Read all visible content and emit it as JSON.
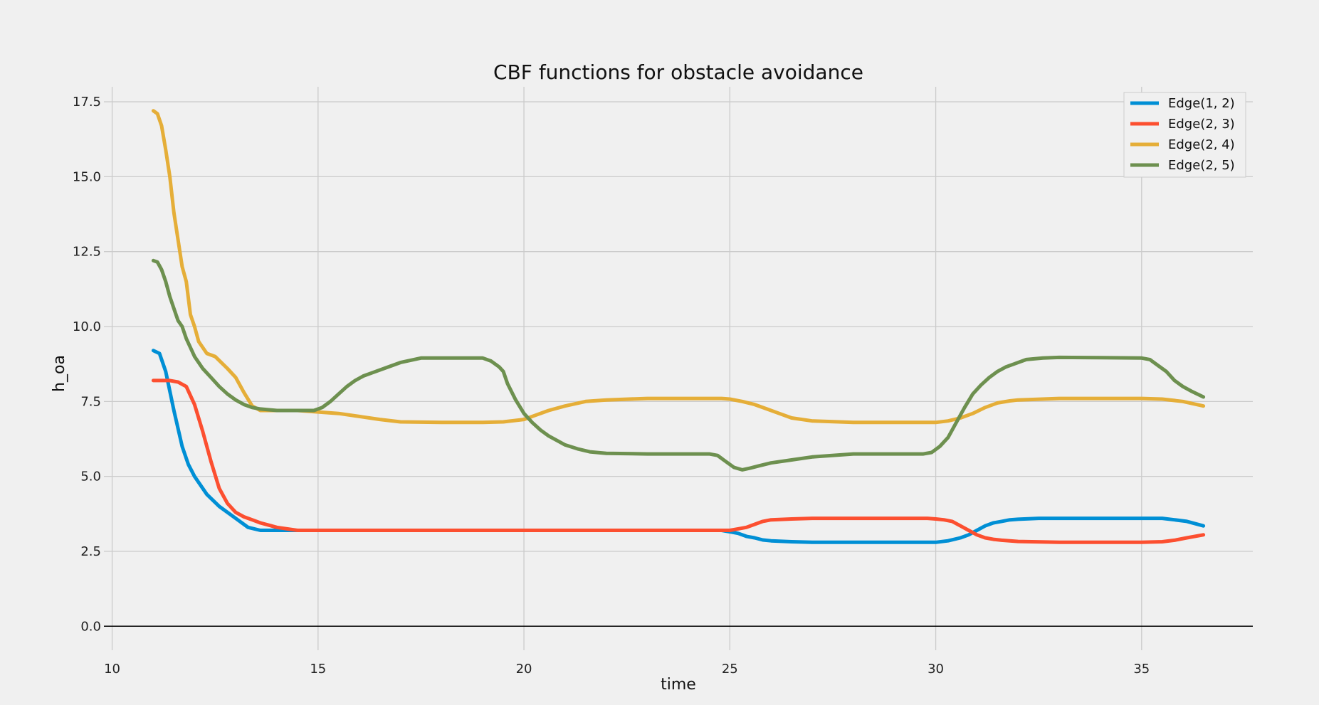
{
  "chart_data": {
    "type": "line",
    "title": "CBF functions for obstacle avoidance",
    "xlabel": "time",
    "ylabel": "h_oa",
    "xlim": [
      9.8,
      37.7
    ],
    "ylim": [
      -0.8,
      18.0
    ],
    "xticks": [
      10,
      15,
      20,
      25,
      30,
      35
    ],
    "yticks": [
      0.0,
      2.5,
      5.0,
      7.5,
      10.0,
      12.5,
      15.0,
      17.5
    ],
    "xtick_labels": [
      "10",
      "15",
      "20",
      "25",
      "30",
      "35"
    ],
    "ytick_labels": [
      "0.0",
      "2.5",
      "5.0",
      "7.5",
      "10.0",
      "12.5",
      "15.0",
      "17.5"
    ],
    "grid": true,
    "zero_line": true,
    "legend_position": "top-right",
    "series": [
      {
        "name": "Edge(1, 2)",
        "color": "#008fd5",
        "x": [
          11.0,
          11.15,
          11.3,
          11.5,
          11.7,
          11.85,
          12.0,
          12.3,
          12.6,
          13.0,
          13.3,
          13.6,
          14.0,
          15.0,
          16.0,
          18.0,
          20.0,
          22.0,
          24.0,
          24.8,
          25.0,
          25.2,
          25.4,
          25.6,
          25.8,
          26.0,
          26.5,
          27.0,
          28.0,
          29.0,
          30.0,
          30.3,
          30.6,
          30.8,
          31.0,
          31.2,
          31.4,
          31.6,
          31.8,
          32.0,
          32.5,
          33.0,
          34.0,
          35.0,
          35.5,
          35.8,
          36.1,
          36.5
        ],
        "y": [
          9.2,
          9.1,
          8.5,
          7.2,
          6.0,
          5.4,
          5.0,
          4.4,
          4.0,
          3.6,
          3.3,
          3.2,
          3.2,
          3.2,
          3.2,
          3.2,
          3.2,
          3.2,
          3.2,
          3.2,
          3.15,
          3.1,
          3.0,
          2.95,
          2.88,
          2.85,
          2.82,
          2.8,
          2.8,
          2.8,
          2.8,
          2.85,
          2.95,
          3.05,
          3.2,
          3.35,
          3.45,
          3.5,
          3.55,
          3.57,
          3.6,
          3.6,
          3.6,
          3.6,
          3.6,
          3.55,
          3.5,
          3.35
        ]
      },
      {
        "name": "Edge(2, 3)",
        "color": "#fc4f30",
        "x": [
          11.0,
          11.2,
          11.4,
          11.6,
          11.8,
          12.0,
          12.2,
          12.4,
          12.6,
          12.8,
          13.0,
          13.2,
          13.4,
          13.6,
          14.0,
          14.5,
          15.0,
          16.0,
          18.0,
          20.0,
          22.0,
          24.0,
          24.8,
          25.0,
          25.2,
          25.4,
          25.6,
          25.8,
          26.0,
          26.5,
          27.0,
          28.0,
          29.0,
          29.8,
          30.0,
          30.2,
          30.4,
          30.6,
          30.8,
          31.0,
          31.2,
          31.4,
          31.6,
          31.8,
          32.0,
          33.0,
          34.0,
          35.0,
          35.5,
          35.8,
          36.1,
          36.5
        ],
        "y": [
          8.2,
          8.2,
          8.2,
          8.15,
          8.0,
          7.4,
          6.5,
          5.5,
          4.6,
          4.1,
          3.8,
          3.65,
          3.55,
          3.45,
          3.3,
          3.2,
          3.2,
          3.2,
          3.2,
          3.2,
          3.2,
          3.2,
          3.2,
          3.2,
          3.25,
          3.3,
          3.4,
          3.5,
          3.55,
          3.58,
          3.6,
          3.6,
          3.6,
          3.6,
          3.58,
          3.55,
          3.5,
          3.35,
          3.2,
          3.05,
          2.95,
          2.9,
          2.87,
          2.85,
          2.83,
          2.8,
          2.8,
          2.8,
          2.82,
          2.87,
          2.95,
          3.05
        ]
      },
      {
        "name": "Edge(2, 4)",
        "color": "#e5ae38",
        "x": [
          11.0,
          11.1,
          11.2,
          11.3,
          11.4,
          11.5,
          11.6,
          11.7,
          11.8,
          11.9,
          12.0,
          12.1,
          12.3,
          12.5,
          12.8,
          13.0,
          13.2,
          13.4,
          13.6,
          14.0,
          14.5,
          15.0,
          15.5,
          16.0,
          16.5,
          17.0,
          18.0,
          19.0,
          19.5,
          20.0,
          20.3,
          20.6,
          21.0,
          21.5,
          22.0,
          23.0,
          24.0,
          24.5,
          24.8,
          25.0,
          25.3,
          25.6,
          25.9,
          26.2,
          26.5,
          27.0,
          28.0,
          29.0,
          30.0,
          30.3,
          30.6,
          30.9,
          31.2,
          31.5,
          31.8,
          32.0,
          33.0,
          34.0,
          35.0,
          35.5,
          36.0,
          36.5
        ],
        "y": [
          17.2,
          17.1,
          16.7,
          15.9,
          15.0,
          13.8,
          12.9,
          12.0,
          11.5,
          10.4,
          10.0,
          9.5,
          9.1,
          9.0,
          8.6,
          8.3,
          7.8,
          7.35,
          7.2,
          7.2,
          7.2,
          7.15,
          7.1,
          7.0,
          6.9,
          6.82,
          6.8,
          6.8,
          6.82,
          6.9,
          7.05,
          7.2,
          7.35,
          7.5,
          7.55,
          7.6,
          7.6,
          7.6,
          7.6,
          7.58,
          7.5,
          7.4,
          7.25,
          7.1,
          6.95,
          6.85,
          6.8,
          6.8,
          6.8,
          6.85,
          6.95,
          7.1,
          7.3,
          7.45,
          7.52,
          7.55,
          7.6,
          7.6,
          7.6,
          7.58,
          7.5,
          7.35
        ]
      },
      {
        "name": "Edge(2, 5)",
        "color": "#6d904f",
        "x": [
          11.0,
          11.1,
          11.2,
          11.3,
          11.4,
          11.5,
          11.6,
          11.7,
          11.8,
          11.9,
          12.0,
          12.2,
          12.4,
          12.6,
          12.8,
          13.0,
          13.2,
          13.4,
          13.6,
          14.0,
          14.5,
          14.9,
          15.1,
          15.3,
          15.5,
          15.7,
          15.9,
          16.1,
          16.3,
          16.6,
          17.0,
          17.5,
          18.0,
          18.5,
          19.0,
          19.2,
          19.4,
          19.5,
          19.6,
          19.8,
          20.0,
          20.2,
          20.4,
          20.6,
          20.8,
          21.0,
          21.3,
          21.6,
          22.0,
          23.0,
          24.0,
          24.5,
          24.7,
          24.9,
          25.1,
          25.3,
          25.5,
          25.7,
          26.0,
          26.5,
          27.0,
          28.0,
          29.0,
          29.7,
          29.9,
          30.1,
          30.3,
          30.5,
          30.7,
          30.9,
          31.1,
          31.3,
          31.5,
          31.7,
          31.9,
          32.2,
          32.6,
          33.0,
          34.0,
          35.0,
          35.2,
          35.4,
          35.6,
          35.8,
          36.0,
          36.2,
          36.5
        ],
        "y": [
          12.2,
          12.15,
          11.9,
          11.5,
          11.0,
          10.6,
          10.2,
          10.0,
          9.6,
          9.3,
          9.0,
          8.6,
          8.3,
          8.0,
          7.75,
          7.55,
          7.4,
          7.3,
          7.25,
          7.2,
          7.2,
          7.2,
          7.3,
          7.5,
          7.75,
          8.0,
          8.2,
          8.35,
          8.45,
          8.6,
          8.8,
          8.95,
          8.95,
          8.95,
          8.95,
          8.85,
          8.65,
          8.5,
          8.1,
          7.55,
          7.1,
          6.8,
          6.55,
          6.35,
          6.2,
          6.05,
          5.92,
          5.82,
          5.77,
          5.75,
          5.75,
          5.75,
          5.7,
          5.5,
          5.3,
          5.22,
          5.28,
          5.35,
          5.45,
          5.55,
          5.65,
          5.75,
          5.75,
          5.75,
          5.8,
          6.0,
          6.3,
          6.8,
          7.3,
          7.75,
          8.05,
          8.3,
          8.5,
          8.65,
          8.75,
          8.9,
          8.95,
          8.97,
          8.96,
          8.95,
          8.9,
          8.7,
          8.5,
          8.2,
          8.0,
          7.85,
          7.65
        ]
      }
    ]
  }
}
